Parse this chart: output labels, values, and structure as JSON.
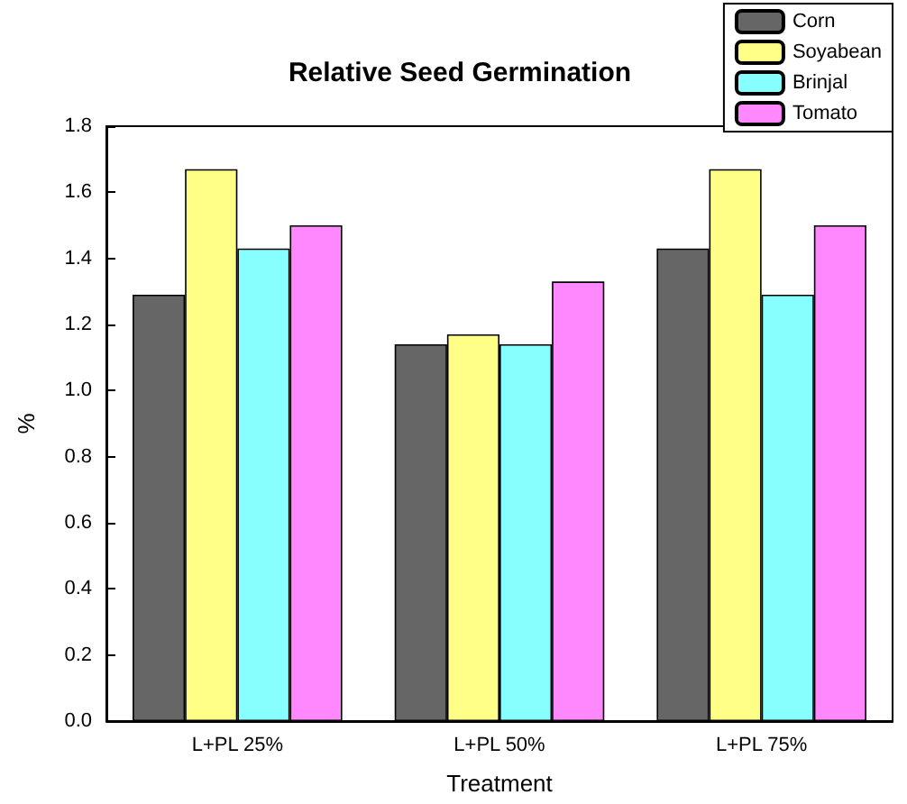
{
  "chart_data": {
    "type": "bar",
    "title": "Relative Seed Germination",
    "xlabel": "Treatment",
    "ylabel": "%",
    "categories": [
      "L+PL 25%",
      "L+PL 50%",
      "L+PL 75%"
    ],
    "series": [
      {
        "name": "Corn",
        "color": "#666666",
        "values": [
          1.29,
          1.14,
          1.43
        ]
      },
      {
        "name": "Soyabean",
        "color": "#ffff88",
        "values": [
          1.67,
          1.17,
          1.67
        ]
      },
      {
        "name": "Brinjal",
        "color": "#88ffff",
        "values": [
          1.43,
          1.14,
          1.29
        ]
      },
      {
        "name": "Tomato",
        "color": "#ff88ff",
        "values": [
          1.5,
          1.33,
          1.5
        ]
      }
    ],
    "ylim": [
      0,
      1.8
    ],
    "yticks": [
      {
        "value": 0,
        "label": "0.0"
      },
      {
        "value": 0.2,
        "label": "0.2"
      },
      {
        "value": 0.4,
        "label": "0.4"
      },
      {
        "value": 0.6,
        "label": "0.6"
      },
      {
        "value": 0.8,
        "label": "0.8"
      },
      {
        "value": 1,
        "label": "1.0"
      },
      {
        "value": 1.2,
        "label": "1.2"
      },
      {
        "value": 1.4,
        "label": "1.4"
      },
      {
        "value": 1.6,
        "label": "1.6"
      },
      {
        "value": 1.8,
        "label": "1.8"
      }
    ],
    "grid": false,
    "legend": "top right"
  }
}
